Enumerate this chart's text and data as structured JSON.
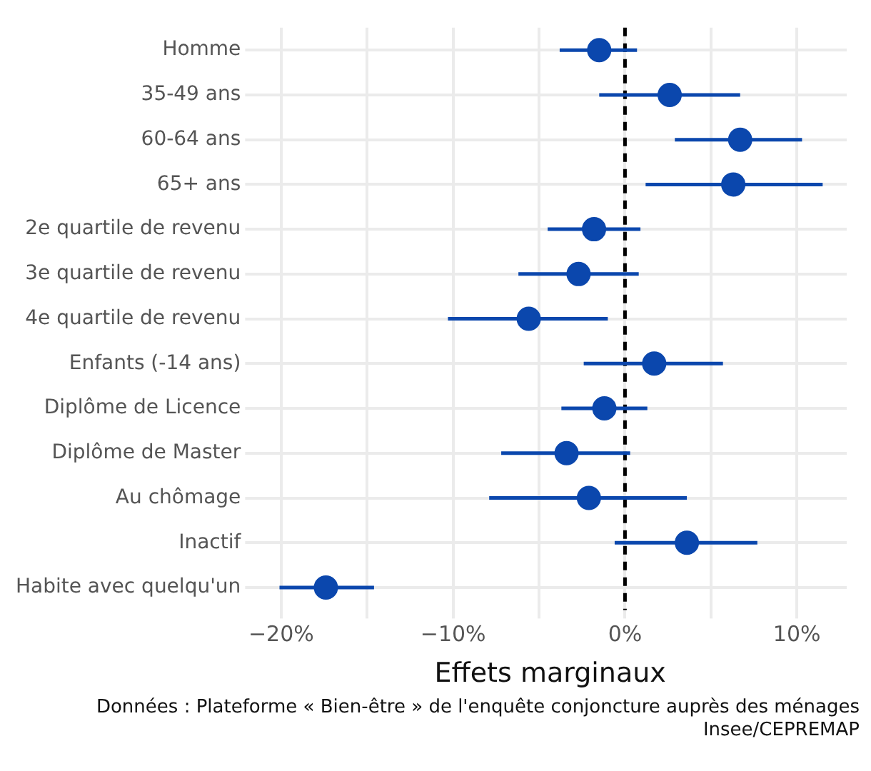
{
  "chart_data": {
    "type": "scatter",
    "orientation": "horizontal",
    "xlabel": "Effets marginaux",
    "categories": [
      "Homme",
      "35-49 ans",
      "60-64 ans",
      "65+ ans",
      "2e quartile de revenu",
      "3e quartile de revenu",
      "4e quartile de revenu",
      "Enfants (-14 ans)",
      "Diplôme de Licence",
      "Diplôme de Master",
      "Au chômage",
      "Inactif",
      "Habite avec quelqu'un"
    ],
    "values": [
      -1.5,
      2.6,
      6.7,
      6.3,
      -1.8,
      -2.7,
      -5.6,
      1.7,
      -1.2,
      -3.4,
      -2.1,
      3.6,
      -17.4
    ],
    "errors": [
      [
        -3.8,
        0.7
      ],
      [
        -1.5,
        6.7
      ],
      [
        2.9,
        10.3
      ],
      [
        1.2,
        11.5
      ],
      [
        -4.5,
        0.9
      ],
      [
        -6.2,
        0.8
      ],
      [
        -10.3,
        -1.0
      ],
      [
        -2.4,
        5.7
      ],
      [
        -3.7,
        1.3
      ],
      [
        -7.2,
        0.3
      ],
      [
        -7.9,
        3.6
      ],
      [
        -0.6,
        7.7
      ],
      [
        -20.1,
        -14.6
      ]
    ],
    "color": "#0b47ad",
    "marker": "circle",
    "xlim": [
      -21.6,
      12.9
    ],
    "xticks": [
      {
        "value": -20,
        "label": "−20%"
      },
      {
        "value": -15,
        "label": null
      },
      {
        "value": -10,
        "label": "−10%"
      },
      {
        "value": -5,
        "label": null
      },
      {
        "value": 0,
        "label": "0%"
      },
      {
        "value": 5,
        "label": null
      },
      {
        "value": 10,
        "label": "10%"
      }
    ],
    "grid": true,
    "ref_lines": [
      {
        "axis": "x",
        "value": 0,
        "color": "#000000",
        "line_style": "dashed"
      }
    ],
    "annotations": [
      "Données : Plateforme « Bien-être » de l'enquête conjoncture auprès des ménages Insee/CEPREMAP"
    ]
  }
}
